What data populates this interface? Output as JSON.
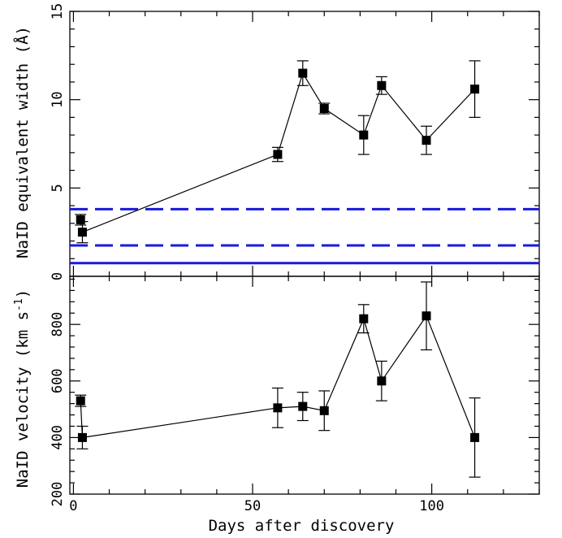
{
  "chart_data": [
    {
      "type": "scatter",
      "ylabel_main": "NaID equivalent width (",
      "ylabel_unit": "Å",
      "ylabel_close": ")",
      "xlim": [
        -1,
        130
      ],
      "ylim": [
        0,
        15
      ],
      "yticks": [
        0,
        5,
        10,
        15
      ],
      "x": [
        2,
        2.5,
        57,
        64,
        70,
        81,
        86,
        98.5,
        112
      ],
      "y": [
        3.2,
        2.5,
        6.9,
        11.5,
        9.5,
        8.0,
        10.8,
        7.7,
        10.6
      ],
      "err_low": [
        0.3,
        0.6,
        0.4,
        0.7,
        0.3,
        1.1,
        0.5,
        0.8,
        1.6
      ],
      "err_high": [
        0.3,
        0.6,
        0.4,
        0.7,
        0.3,
        1.1,
        0.5,
        0.8,
        1.6
      ],
      "connected_from_index": 1,
      "hlines": [
        {
          "y": 3.8,
          "style": "dashed",
          "color": "#1a1adb"
        },
        {
          "y": 1.75,
          "style": "dashed",
          "color": "#1a1adb"
        },
        {
          "y": 0.75,
          "style": "solid",
          "color": "#1a1adb"
        }
      ]
    },
    {
      "type": "line",
      "ylabel_main": "NaID velocity (km s",
      "ylabel_sup": "-1",
      "ylabel_close": ")",
      "xlabel": "Days after discovery",
      "xlim": [
        -1,
        130
      ],
      "ylim": [
        200,
        970
      ],
      "yticks": [
        200,
        400,
        600,
        800
      ],
      "xticks": [
        0,
        50,
        100
      ],
      "x": [
        2,
        2.5,
        57,
        64,
        70,
        81,
        86,
        98.5,
        112
      ],
      "y": [
        530,
        400,
        505,
        510,
        495,
        820,
        600,
        830,
        400
      ],
      "err_low": [
        20,
        40,
        70,
        50,
        70,
        50,
        70,
        120,
        140
      ],
      "err_high": [
        20,
        40,
        70,
        50,
        70,
        50,
        70,
        120,
        140
      ],
      "connected_from_index": 0
    }
  ]
}
